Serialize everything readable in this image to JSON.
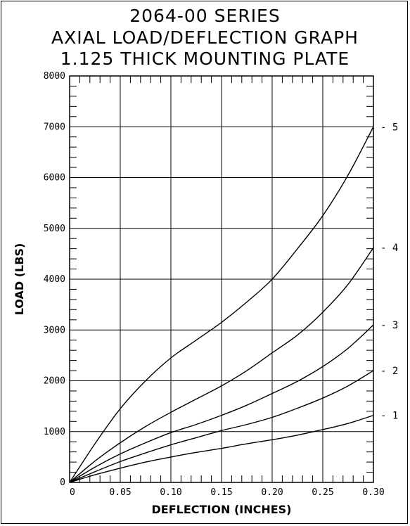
{
  "chart_data": {
    "type": "line",
    "title": [
      "2064-00 SERIES",
      "AXIAL LOAD/DEFLECTION GRAPH",
      "1.125 THICK MOUNTING PLATE"
    ],
    "xlabel": "DEFLECTION (INCHES)",
    "ylabel": "LOAD (LBS)",
    "xlim": [
      0,
      0.3
    ],
    "ylim": [
      0,
      8000
    ],
    "x_ticks": [
      "0",
      "0.05",
      "0.10",
      "0.15",
      "0.20",
      "0.25",
      "0.30"
    ],
    "y_ticks": [
      "0",
      "1000",
      "2000",
      "3000",
      "4000",
      "5000",
      "6000",
      "7000",
      "8000"
    ],
    "grid": true,
    "series": [
      {
        "name": "- 1",
        "x": [
          0,
          0.025,
          0.05,
          0.075,
          0.1,
          0.125,
          0.15,
          0.175,
          0.2,
          0.225,
          0.25,
          0.275,
          0.3
        ],
        "y": [
          0,
          150,
          280,
          400,
          500,
          590,
          670,
          760,
          840,
          930,
          1040,
          1160,
          1320
        ]
      },
      {
        "name": "- 2",
        "x": [
          0,
          0.025,
          0.05,
          0.075,
          0.1,
          0.125,
          0.15,
          0.175,
          0.2,
          0.225,
          0.25,
          0.275,
          0.3
        ],
        "y": [
          0,
          210,
          410,
          580,
          740,
          880,
          1020,
          1140,
          1280,
          1460,
          1660,
          1900,
          2200
        ]
      },
      {
        "name": "- 3",
        "x": [
          0,
          0.025,
          0.05,
          0.075,
          0.1,
          0.125,
          0.15,
          0.175,
          0.2,
          0.225,
          0.25,
          0.275,
          0.3
        ],
        "y": [
          0,
          300,
          560,
          780,
          980,
          1140,
          1320,
          1520,
          1750,
          1990,
          2280,
          2640,
          3100
        ]
      },
      {
        "name": "- 4",
        "x": [
          0,
          0.025,
          0.05,
          0.075,
          0.1,
          0.125,
          0.15,
          0.175,
          0.2,
          0.225,
          0.25,
          0.275,
          0.3
        ],
        "y": [
          0,
          420,
          780,
          1100,
          1380,
          1640,
          1900,
          2200,
          2550,
          2900,
          3350,
          3900,
          4620
        ]
      },
      {
        "name": "- 5",
        "x": [
          0,
          0.025,
          0.05,
          0.075,
          0.1,
          0.125,
          0.15,
          0.175,
          0.2,
          0.225,
          0.25,
          0.275,
          0.3
        ],
        "y": [
          0,
          760,
          1450,
          2000,
          2450,
          2800,
          3150,
          3550,
          4000,
          4600,
          5250,
          6050,
          7000
        ]
      }
    ]
  }
}
